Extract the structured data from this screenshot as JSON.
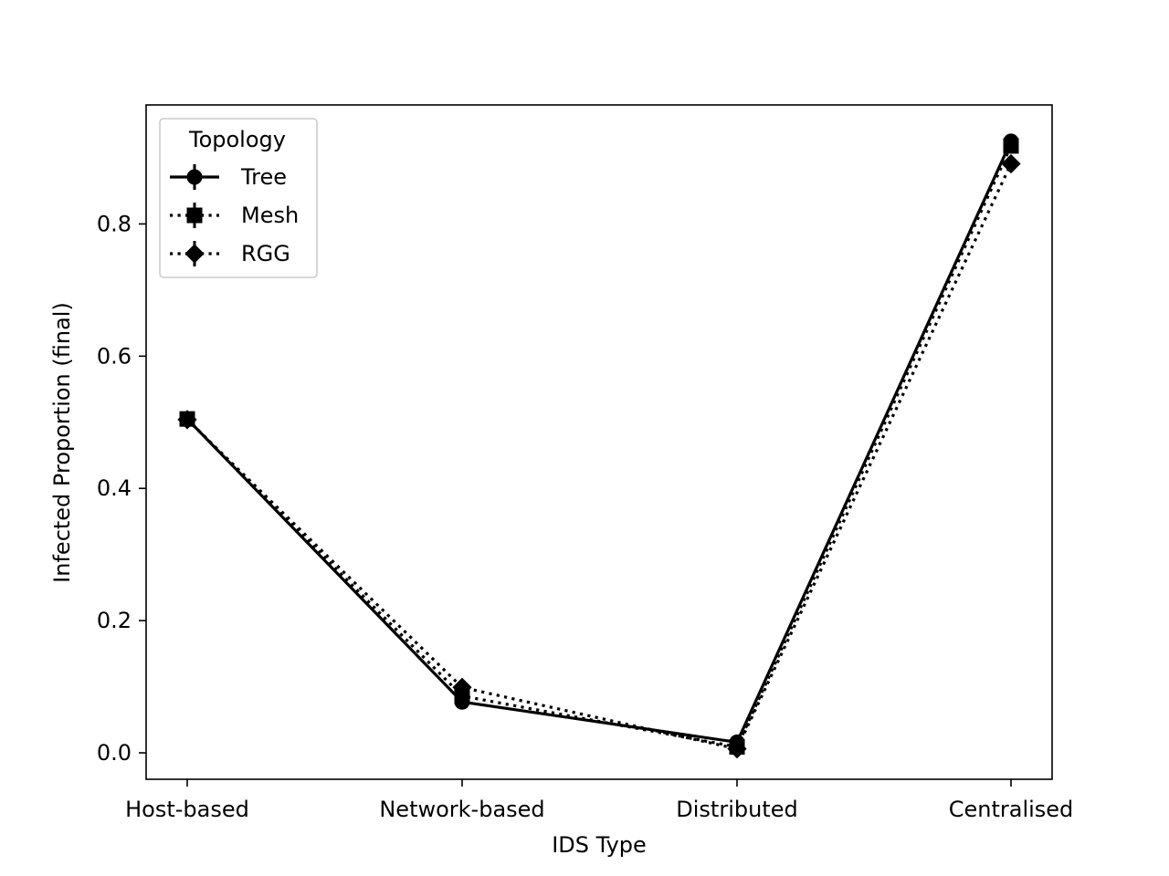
{
  "chart_data": {
    "type": "line",
    "title": "",
    "xlabel": "IDS Type",
    "ylabel": "Infected Proportion (final)",
    "categories": [
      "Host-based",
      "Network-based",
      "Distributed",
      "Centralised"
    ],
    "ylim": [
      -0.04,
      0.98
    ],
    "yticks": [
      0.0,
      0.2,
      0.4,
      0.6,
      0.8
    ],
    "ytick_labels": [
      "0.0",
      "0.2",
      "0.4",
      "0.6",
      "0.8"
    ],
    "grid": false,
    "legend": {
      "title": "Topology",
      "placement": "top-left"
    },
    "series": [
      {
        "name": "Tree",
        "marker": "circle",
        "linestyle": "solid",
        "color": "#000000",
        "values": [
          0.505,
          0.077,
          0.016,
          0.925
        ]
      },
      {
        "name": "Mesh",
        "marker": "square",
        "linestyle": "dotted",
        "color": "#000000",
        "values": [
          0.505,
          0.086,
          0.009,
          0.918
        ]
      },
      {
        "name": "RGG",
        "marker": "diamond",
        "linestyle": "dotted",
        "color": "#000000",
        "values": [
          0.504,
          0.099,
          0.006,
          0.891
        ]
      }
    ]
  }
}
